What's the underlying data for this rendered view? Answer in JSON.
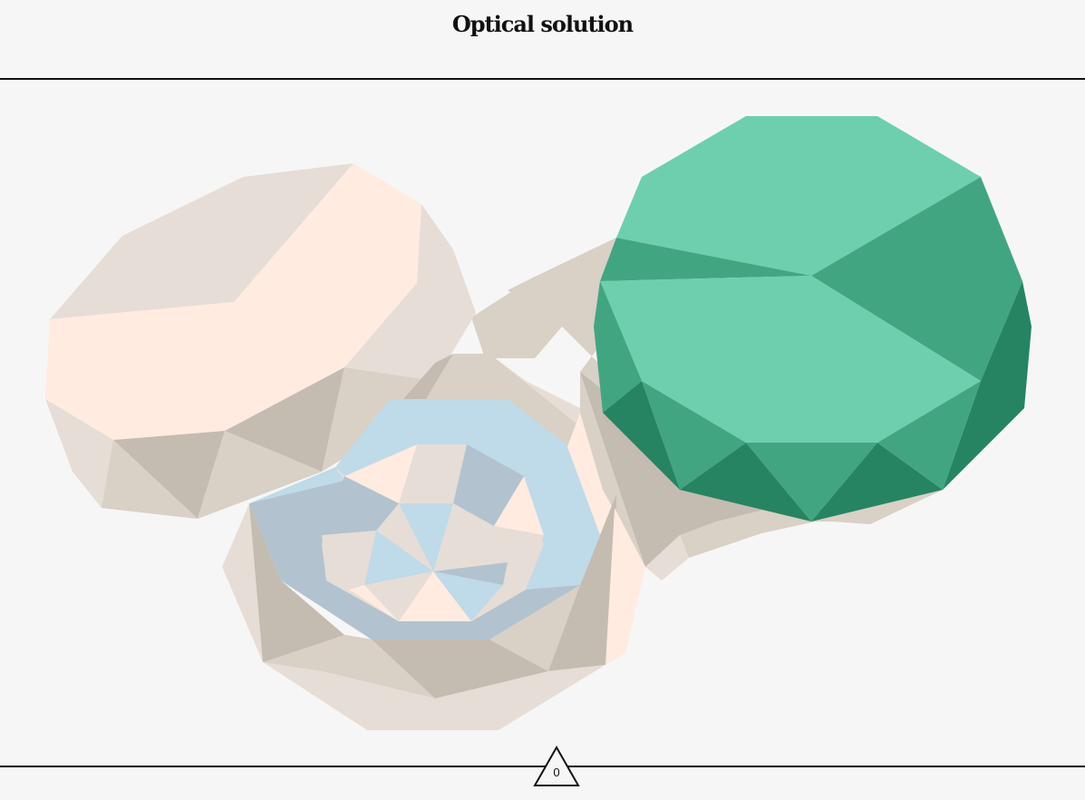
{
  "header": {
    "title": "Optical solution"
  },
  "footer": {
    "counter_value": "0",
    "counter_icon": "triangle-icon"
  },
  "palette": {
    "background": "#f7f6f6",
    "rule": "#111111",
    "beige_light": "#e6ddd6",
    "beige_mid": "#d9d0c6",
    "beige_dark": "#c4bcb0",
    "peach": "#ffebe0",
    "blue_light": "#bfdae8",
    "blue_grey": "#b2c2cf",
    "green_light": "#6dcfae",
    "green_mid": "#42a582",
    "green_dark": "#268462"
  }
}
